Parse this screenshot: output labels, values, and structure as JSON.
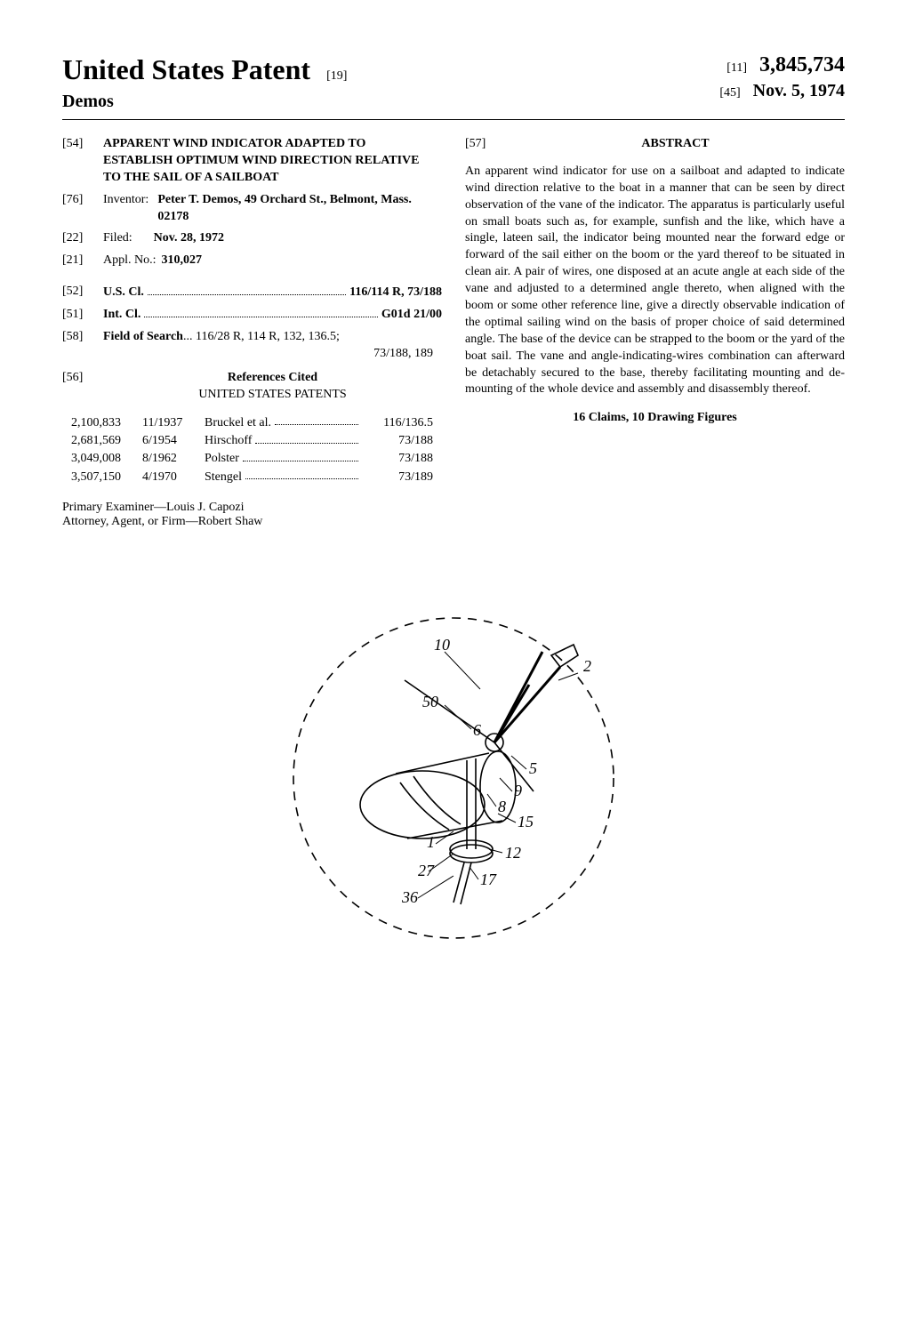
{
  "header": {
    "publication": "United States Patent",
    "pub_code": "[19]",
    "inventor_last": "Demos",
    "right": {
      "code_num": "[11]",
      "patent_number": "3,845,734",
      "code_date": "[45]",
      "date": "Nov. 5, 1974"
    }
  },
  "left": {
    "title_code": "[54]",
    "title": "APPARENT WIND INDICATOR ADAPTED TO ESTABLISH OPTIMUM WIND DIRECTION RELATIVE TO THE SAIL OF A SAILBOAT",
    "inventor_code": "[76]",
    "inventor_label": "Inventor:",
    "inventor_val": "Peter T. Demos, 49 Orchard St., Belmont, Mass. 02178",
    "filed_code": "[22]",
    "filed_label": "Filed:",
    "filed_val": "Nov. 28, 1972",
    "appl_code": "[21]",
    "appl_label": "Appl. No.:",
    "appl_val": "310,027",
    "uscl_code": "[52]",
    "uscl_label": "U.S. Cl.",
    "uscl_val": "116/114 R, 73/188",
    "intcl_code": "[51]",
    "intcl_label": "Int. Cl.",
    "intcl_val": "G01d 21/00",
    "fos_code": "[58]",
    "fos_label": "Field of Search",
    "fos_val": "116/28 R, 114 R, 132, 136.5;",
    "fos_extra": "73/188, 189",
    "refs_code": "[56]",
    "refs_header": "References Cited",
    "refs_sub": "UNITED STATES PATENTS",
    "refs": [
      {
        "num": "2,100,833",
        "date": "11/1937",
        "name": "Bruckel et al.",
        "cls": "116/136.5"
      },
      {
        "num": "2,681,569",
        "date": "6/1954",
        "name": "Hirschoff",
        "cls": "73/188"
      },
      {
        "num": "3,049,008",
        "date": "8/1962",
        "name": "Polster",
        "cls": "73/188"
      },
      {
        "num": "3,507,150",
        "date": "4/1970",
        "name": "Stengel",
        "cls": "73/189"
      }
    ],
    "examiner_label": "Primary Examiner—",
    "examiner_val": "Louis J. Capozi",
    "attorney_label": "Attorney, Agent, or Firm—",
    "attorney_val": "Robert Shaw"
  },
  "right": {
    "abstract_code": "[57]",
    "abstract_header": "ABSTRACT",
    "abstract": "An apparent wind indicator for use on a sailboat and adapted to indicate wind direction relative to the boat in a manner that can be seen by direct observation of the vane of the indicator. The apparatus is particularly useful on small boats such as, for example, sunfish and the like, which have a single, lateen sail, the indicator being mounted near the forward edge or forward of the sail either on the boom or the yard thereof to be situated in clean air. A pair of wires, one disposed at an acute angle at each side of the vane and adjusted to a determined angle thereto, when aligned with the boom or some other reference line, give a directly observable indication of the optimal sailing wind on the basis of proper choice of said determined angle. The base of the device can be strapped to the boom or the yard of the boat sail. The vane and angle-indicating-wires combination can afterward be detachably secured to the base, thereby facilitating mounting and de-mounting of the whole device and assembly and disassembly thereof.",
    "claims_line": "16 Claims, 10 Drawing Figures"
  },
  "figure": {
    "labels": [
      "10",
      "2",
      "50",
      "6",
      "5",
      "9",
      "8",
      "1",
      "15",
      "27",
      "12",
      "36",
      "17"
    ]
  },
  "colors": {
    "text": "#000000",
    "bg": "#ffffff"
  }
}
